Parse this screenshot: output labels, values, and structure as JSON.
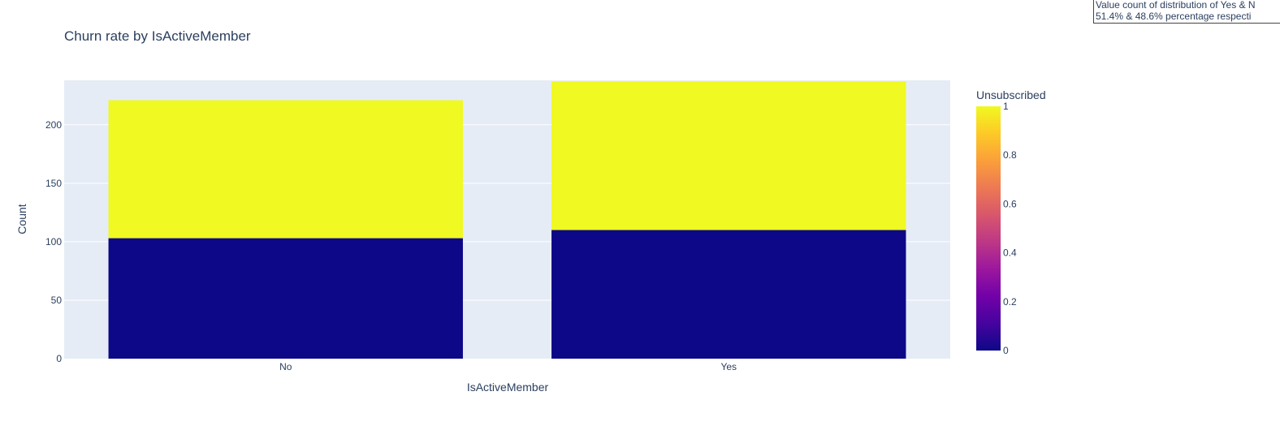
{
  "chart_data": {
    "type": "bar",
    "title": "Churn rate by IsActiveMember",
    "xlabel": "IsActiveMember",
    "ylabel": "Count",
    "categories": [
      "No",
      "Yes"
    ],
    "stacked": true,
    "series": [
      {
        "name": "0",
        "color_value": 0,
        "color": "#0d0887",
        "values": [
          103,
          110
        ]
      },
      {
        "name": "1",
        "color_value": 1,
        "color": "#f0f921",
        "values": [
          118,
          127
        ]
      }
    ],
    "ylim": [
      0,
      238
    ],
    "yticks": [
      0,
      50,
      100,
      150,
      200
    ],
    "grid": true,
    "plot_background": "#e5ecf6",
    "colorbar": {
      "title": "Unsubscribed",
      "range": [
        0,
        1
      ],
      "ticks": [
        "0",
        "0.2",
        "0.4",
        "0.6",
        "0.8",
        "1"
      ],
      "colorscale": [
        "#0d0887",
        "#46039f",
        "#7201a8",
        "#9c179e",
        "#bd3786",
        "#d8576b",
        "#ed7953",
        "#fb9f3a",
        "#fdca26",
        "#f0f921"
      ]
    },
    "annotation": {
      "line1": "Value count of distribution of Yes & N",
      "line2": "51.4% & 48.6% percentage respecti"
    }
  }
}
